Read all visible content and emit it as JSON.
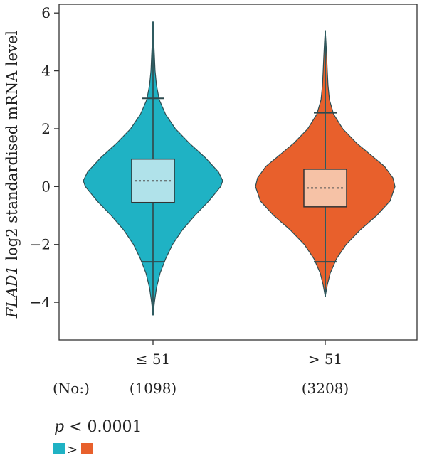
{
  "chart_data": {
    "type": "violin",
    "gene": "FLAD1",
    "ylabel_rest": " log2 standardised mRNA level",
    "ylim": [
      -5.3,
      6.3
    ],
    "yticks": [
      6,
      4,
      2,
      0,
      -2,
      -4
    ],
    "ytick_labels": [
      "6",
      "4",
      "2",
      "0",
      "−2",
      "−4"
    ],
    "no_label": "(No:)",
    "groups": [
      {
        "label": "≤ 51",
        "count_label": "(1098)",
        "color": "#1fb2c4",
        "box_fill": "#b0e2ea",
        "whisker_low": -2.6,
        "q1": -0.55,
        "median": 0.2,
        "q3": 0.95,
        "whisker_high": 3.05,
        "min": -4.45,
        "max": 5.7,
        "density": [
          [
            -4.45,
            0.0
          ],
          [
            -4.0,
            0.02
          ],
          [
            -3.5,
            0.05
          ],
          [
            -3.0,
            0.1
          ],
          [
            -2.5,
            0.18
          ],
          [
            -2.0,
            0.28
          ],
          [
            -1.5,
            0.42
          ],
          [
            -1.0,
            0.6
          ],
          [
            -0.5,
            0.8
          ],
          [
            0.0,
            0.97
          ],
          [
            0.2,
            1.0
          ],
          [
            0.5,
            0.94
          ],
          [
            1.0,
            0.75
          ],
          [
            1.5,
            0.52
          ],
          [
            2.0,
            0.32
          ],
          [
            2.5,
            0.18
          ],
          [
            3.0,
            0.09
          ],
          [
            3.5,
            0.05
          ],
          [
            4.0,
            0.03
          ],
          [
            4.5,
            0.02
          ],
          [
            5.0,
            0.01
          ],
          [
            5.7,
            0.0
          ]
        ]
      },
      {
        "label": "> 51",
        "count_label": "(3208)",
        "color": "#e8602c",
        "box_fill": "#f6c2a6",
        "whisker_low": -2.6,
        "q1": -0.7,
        "median": -0.05,
        "q3": 0.6,
        "whisker_high": 2.55,
        "min": -3.8,
        "max": 5.4,
        "density": [
          [
            -3.8,
            0.0
          ],
          [
            -3.4,
            0.03
          ],
          [
            -3.0,
            0.07
          ],
          [
            -2.5,
            0.16
          ],
          [
            -2.0,
            0.3
          ],
          [
            -1.5,
            0.5
          ],
          [
            -1.0,
            0.74
          ],
          [
            -0.5,
            0.93
          ],
          [
            0.0,
            1.0
          ],
          [
            0.3,
            0.97
          ],
          [
            0.7,
            0.85
          ],
          [
            1.0,
            0.7
          ],
          [
            1.5,
            0.45
          ],
          [
            2.0,
            0.25
          ],
          [
            2.5,
            0.12
          ],
          [
            3.0,
            0.06
          ],
          [
            3.5,
            0.04
          ],
          [
            4.0,
            0.03
          ],
          [
            4.5,
            0.02
          ],
          [
            5.0,
            0.01
          ],
          [
            5.4,
            0.0
          ]
        ]
      }
    ]
  },
  "stats": {
    "p_symbol": "p",
    "p_rest": " < 0.0001",
    "comparison_symbol": ">",
    "left_color": "#1fb2c4",
    "right_color": "#e8602c"
  }
}
